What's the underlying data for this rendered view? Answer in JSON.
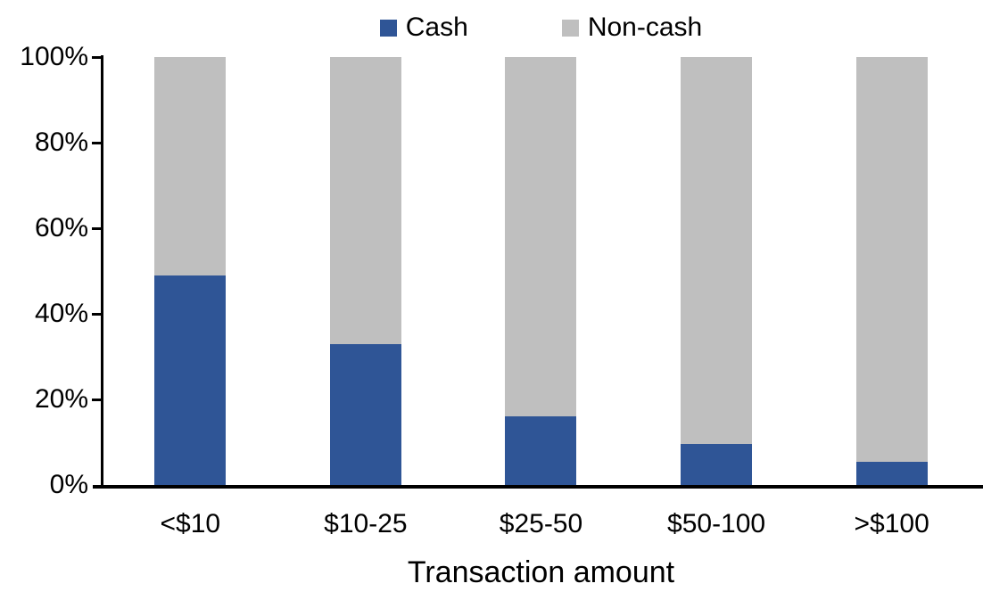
{
  "chart_data": {
    "type": "bar",
    "stacked": true,
    "orientation": "vertical",
    "xlabel": "Transaction amount",
    "ylabel": "",
    "categories": [
      "<$10",
      "$10-25",
      "$25-50",
      "$50-100",
      ">$100"
    ],
    "series": [
      {
        "name": "Cash",
        "color": "#2F5596",
        "values": [
          49,
          33,
          16,
          9.5,
          5.5
        ]
      },
      {
        "name": "Non-cash",
        "color": "#BFBFBF",
        "values": [
          51,
          67,
          84,
          90.5,
          94.5
        ]
      }
    ],
    "ylim": [
      0,
      100
    ],
    "ytick_values": [
      0,
      20,
      40,
      60,
      80,
      100
    ],
    "ytick_labels": [
      "0%",
      "20%",
      "40%",
      "60%",
      "80%",
      "100%"
    ],
    "legend_position": "top-center",
    "grid": false,
    "colors": {
      "axis": "#000000",
      "text": "#000000",
      "background": "#FFFFFF"
    }
  }
}
